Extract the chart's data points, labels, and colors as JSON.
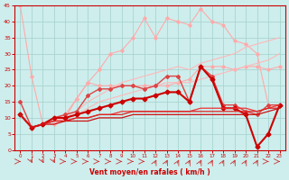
{
  "xlabel": "Vent moyen/en rafales ( km/h )",
  "background_color": "#cdeeed",
  "grid_color": "#aad4d0",
  "x": [
    0,
    1,
    2,
    3,
    4,
    5,
    6,
    7,
    8,
    9,
    10,
    11,
    12,
    13,
    14,
    15,
    16,
    17,
    18,
    19,
    20,
    21,
    22,
    23
  ],
  "lines": [
    {
      "y": [
        45,
        23,
        8,
        8,
        10,
        16,
        21,
        20,
        20,
        20,
        20,
        20,
        20,
        20,
        21,
        22,
        26,
        26,
        26,
        25,
        26,
        26,
        25,
        26
      ],
      "color": "#ffaaaa",
      "lw": 0.8,
      "marker": "D",
      "ms": 1.8,
      "style": "-"
    },
    {
      "y": [
        11,
        7,
        8,
        10,
        11,
        16,
        21,
        25,
        30,
        31,
        35,
        41,
        35,
        41,
        40,
        39,
        44,
        40,
        39,
        34,
        33,
        30,
        14,
        14
      ],
      "color": "#ffaaaa",
      "lw": 0.8,
      "marker": "D",
      "ms": 1.8,
      "style": "-"
    },
    {
      "y": [
        11,
        7,
        8,
        9,
        10,
        12,
        15,
        17,
        19,
        21,
        22,
        23,
        24,
        25,
        26,
        25,
        27,
        28,
        29,
        30,
        32,
        33,
        34,
        35
      ],
      "color": "#ffb8b8",
      "lw": 0.8,
      "marker": null,
      "ms": 0,
      "style": "-"
    },
    {
      "y": [
        11,
        7,
        8,
        9,
        10,
        11,
        13,
        15,
        16,
        17,
        18,
        19,
        20,
        21,
        21,
        21,
        22,
        23,
        24,
        25,
        26,
        27,
        28,
        30
      ],
      "color": "#ffb8b8",
      "lw": 0.8,
      "marker": null,
      "ms": 0,
      "style": "-"
    },
    {
      "y": [
        15,
        7,
        8,
        10,
        11,
        12,
        17,
        19,
        19,
        20,
        20,
        19,
        20,
        23,
        23,
        15,
        26,
        23,
        14,
        14,
        12,
        11,
        14,
        14
      ],
      "color": "#dd4444",
      "lw": 1.0,
      "marker": "D",
      "ms": 2.0,
      "style": "-"
    },
    {
      "y": [
        11,
        7,
        8,
        10,
        10,
        11,
        12,
        13,
        14,
        15,
        16,
        16,
        17,
        18,
        18,
        15,
        26,
        22,
        13,
        13,
        11,
        1,
        5,
        14
      ],
      "color": "#cc0000",
      "lw": 1.5,
      "marker": "D",
      "ms": 2.5,
      "style": "-"
    },
    {
      "y": [
        11,
        7,
        8,
        9,
        9,
        10,
        10,
        11,
        11,
        12,
        12,
        12,
        12,
        12,
        12,
        12,
        13,
        13,
        13,
        13,
        13,
        12,
        13,
        14
      ],
      "color": "#ee3333",
      "lw": 0.9,
      "marker": null,
      "ms": 0,
      "style": "-"
    },
    {
      "y": [
        11,
        7,
        8,
        9,
        9,
        10,
        10,
        11,
        11,
        11,
        12,
        12,
        12,
        12,
        12,
        12,
        12,
        12,
        12,
        12,
        12,
        12,
        13,
        13
      ],
      "color": "#dd2222",
      "lw": 0.9,
      "marker": null,
      "ms": 0,
      "style": "-"
    },
    {
      "y": [
        11,
        7,
        8,
        8,
        9,
        9,
        9,
        10,
        10,
        10,
        11,
        11,
        11,
        11,
        11,
        11,
        11,
        11,
        11,
        11,
        11,
        11,
        12,
        13
      ],
      "color": "#cc1111",
      "lw": 0.9,
      "marker": null,
      "ms": 0,
      "style": "-"
    }
  ],
  "ylim": [
    0,
    45
  ],
  "yticks": [
    0,
    5,
    10,
    15,
    20,
    25,
    30,
    35,
    40,
    45
  ],
  "xticks": [
    0,
    1,
    2,
    3,
    4,
    5,
    6,
    7,
    8,
    9,
    10,
    11,
    12,
    13,
    14,
    15,
    16,
    17,
    18,
    19,
    20,
    21,
    22,
    23
  ],
  "arrow_angles": [
    0,
    45,
    45,
    45,
    0,
    0,
    0,
    0,
    0,
    0,
    0,
    0,
    315,
    315,
    315,
    315,
    315,
    315,
    315,
    315,
    315,
    315,
    0,
    0
  ]
}
